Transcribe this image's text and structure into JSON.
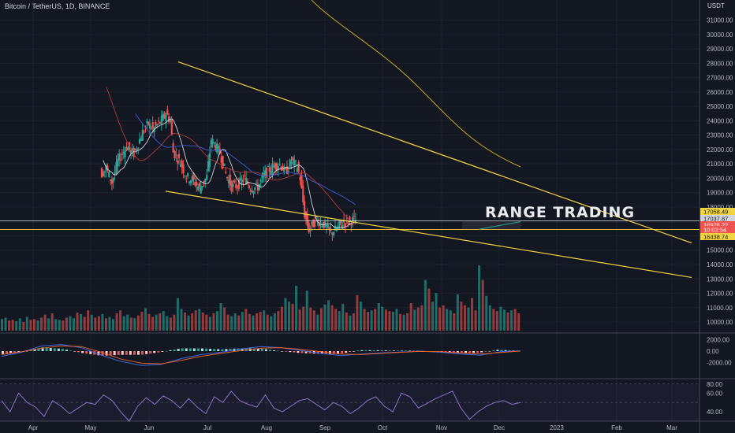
{
  "header": {
    "symbol": "Bitcoin / TetherUS, 1D, BINANCE",
    "unit": "USDT"
  },
  "colors": {
    "bg": "#131722",
    "up": "#26a69a",
    "down": "#ef5350",
    "trend": "#f0d442",
    "ma_white": "#d1d4dc",
    "ma_red": "#b23a3a",
    "ma_blue": "#3b5bd1",
    "ma_yellow": "#c9a81b",
    "macd": "#3f6ad8",
    "signal": "#e06030",
    "rsi": "#8e72c6"
  },
  "annotation": "RANGE TRADING",
  "price_tags": [
    {
      "label": "17058.49",
      "value": 17058.49,
      "color": "#f0d442"
    },
    {
      "label": "17037.87",
      "value": 17037.87,
      "color": "#d1d4dc"
    },
    {
      "label": "16976.22",
      "value": 16976.22,
      "color": "#ef5350"
    },
    {
      "label": "10:02:54",
      "value": 16840,
      "color": "#ef5350"
    },
    {
      "label": "16438.74",
      "value": 16438.74,
      "color": "#f0d442"
    }
  ],
  "chart_data": [
    {
      "type": "line",
      "title": "Bitcoin / TetherUS, 1D, BINANCE",
      "ylabel": "USDT",
      "x": [
        "Apr",
        "May",
        "Jun",
        "Jul",
        "Aug",
        "Sep",
        "Oct",
        "Nov",
        "Dec",
        "2023",
        "Feb",
        "Mar"
      ],
      "ylim": [
        9400,
        32400
      ],
      "y_ticks": [
        10000,
        11000,
        12000,
        13000,
        14000,
        15000,
        16000,
        17000,
        18000,
        19000,
        20000,
        21000,
        22000,
        23000,
        24000,
        25000,
        26000,
        27000,
        28000,
        29000,
        30000,
        31000
      ],
      "series": [
        {
          "name": "price",
          "values": [
            [
              0,
              32500
            ],
            [
              30,
              32000
            ],
            [
              60,
              30200
            ],
            [
              63,
              30200
            ],
            [
              70,
              29900
            ],
            [
              76,
              31000
            ],
            [
              82,
              29600
            ],
            [
              88,
              27500
            ],
            [
              92,
              23000
            ],
            [
              96,
              21000
            ],
            [
              101,
              20300
            ],
            [
              104,
              20700
            ],
            [
              108,
              19700
            ],
            [
              112,
              21200
            ],
            [
              118,
              22200
            ],
            [
              123,
              21700
            ],
            [
              129,
              23200
            ],
            [
              133,
              23800
            ],
            [
              136,
              23400
            ],
            [
              141,
              23900
            ],
            [
              145,
              24500
            ],
            [
              148,
              24000
            ],
            [
              150,
              21800
            ],
            [
              155,
              21100
            ],
            [
              159,
              20100
            ],
            [
              163,
              19900
            ],
            [
              168,
              19300
            ],
            [
              173,
              20100
            ],
            [
              176,
              22700
            ],
            [
              182,
              21800
            ],
            [
              186,
              20300
            ],
            [
              190,
              19400
            ],
            [
              194,
              19500
            ],
            [
              199,
              20000
            ],
            [
              203,
              19300
            ],
            [
              208,
              19400
            ],
            [
              212,
              20200
            ],
            [
              218,
              20800
            ],
            [
              223,
              21000
            ],
            [
              227,
              20400
            ],
            [
              231,
              21200
            ],
            [
              235,
              20800
            ],
            [
              237,
              20000
            ],
            [
              240,
              17500
            ],
            [
              243,
              16400
            ],
            [
              248,
              17100
            ],
            [
              253,
              16800
            ],
            [
              258,
              16200
            ],
            [
              262,
              16500
            ],
            [
              266,
              16900
            ],
            [
              270,
              17000
            ],
            [
              274,
              17100
            ]
          ]
        },
        {
          "name": "trendline-upper",
          "values": [
            [
              55,
              28100
            ],
            [
              365,
              15500
            ]
          ]
        },
        {
          "name": "trendline-lower",
          "values": [
            [
              51,
              19100
            ],
            [
              365,
              13100
            ]
          ]
        },
        {
          "name": "support",
          "values": [
            [
              0,
              16440
            ],
            [
              365,
              16440
            ]
          ]
        },
        {
          "name": "resistance",
          "values": [
            [
              0,
              17040
            ],
            [
              365,
              17040
            ]
          ]
        }
      ]
    },
    {
      "type": "bar",
      "series": [
        {
          "name": "volume",
          "values": [
            16,
            18,
            14,
            15,
            13,
            17,
            12,
            19,
            15,
            16,
            14,
            18,
            22,
            17,
            24,
            16,
            15,
            14,
            18,
            20,
            17,
            25,
            23,
            19,
            28,
            22,
            18,
            20,
            23,
            17,
            19,
            16,
            24,
            28,
            20,
            22,
            18,
            17,
            21,
            26,
            31,
            23,
            19,
            22,
            24,
            27,
            20,
            18,
            22,
            45,
            30,
            25,
            21,
            24,
            28,
            30,
            25,
            22,
            19,
            24,
            27,
            38,
            32,
            22,
            20,
            24,
            21,
            26,
            30,
            23,
            21,
            24,
            26,
            28,
            22,
            20,
            24,
            27,
            33,
            45,
            40,
            37,
            62,
            29,
            33,
            55,
            32,
            28,
            22,
            31,
            36,
            42,
            35,
            30,
            27,
            37,
            25,
            21,
            24,
            49,
            40,
            30,
            26,
            28,
            30,
            38,
            33,
            29,
            27,
            26,
            30,
            23,
            22,
            24,
            38,
            29,
            32,
            35,
            70,
            58,
            40,
            52,
            32,
            35,
            30,
            28,
            24,
            50,
            40,
            35,
            32,
            45,
            28,
            90,
            70,
            48,
            35,
            30,
            27,
            33,
            29,
            25,
            28,
            30,
            24
          ]
        }
      ]
    },
    {
      "type": "line",
      "ylim": [
        -2600,
        2600
      ],
      "y_ticks": [
        2000,
        0,
        -2000
      ],
      "series": [
        {
          "name": "MACD",
          "values": [
            -900,
            -200,
            900,
            1150,
            600,
            -700,
            -1800,
            -2500,
            -2300,
            -1300,
            -600,
            -200,
            400,
            800,
            600,
            100,
            -400,
            -800,
            -500,
            -300,
            -150,
            0,
            -200,
            -500,
            -700,
            -100,
            60
          ]
        },
        {
          "name": "signal",
          "values": [
            -600,
            -100,
            500,
            900,
            800,
            -200,
            -1400,
            -2100,
            -2200,
            -1600,
            -900,
            -400,
            100,
            500,
            600,
            300,
            -100,
            -500,
            -600,
            -400,
            -200,
            -50,
            -100,
            -300,
            -500,
            -250,
            0
          ]
        }
      ]
    },
    {
      "type": "line",
      "ylim": [
        30,
        72
      ],
      "y_ticks": [
        80,
        60,
        40
      ],
      "series": [
        {
          "name": "RSI",
          "values": [
            52,
            40,
            60,
            50,
            45,
            35,
            52,
            46,
            38,
            44,
            50,
            48,
            58,
            52,
            40,
            30,
            46,
            55,
            48,
            57,
            52,
            44,
            54,
            45,
            38,
            56,
            50,
            62,
            52,
            48,
            45,
            58,
            44,
            40,
            46,
            52,
            54,
            48,
            42,
            50,
            46,
            38,
            44,
            52,
            56,
            46,
            40,
            60,
            56,
            44,
            49,
            54,
            58,
            62,
            44,
            32,
            40,
            46,
            50,
            52,
            48,
            50
          ]
        }
      ]
    }
  ]
}
